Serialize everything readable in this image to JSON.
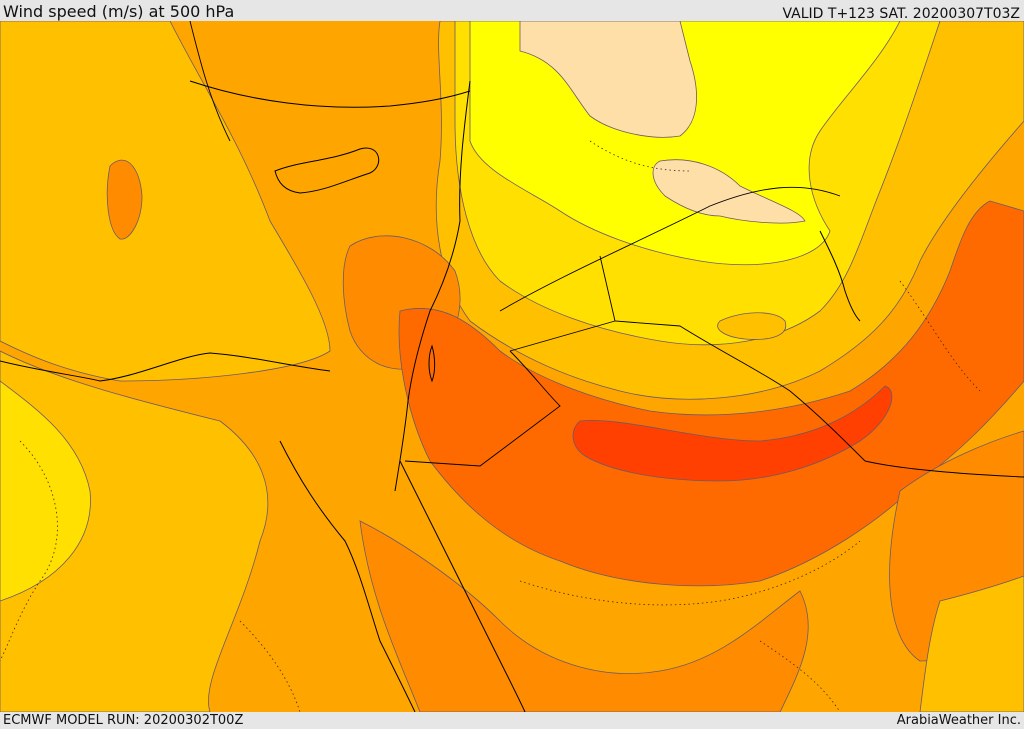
{
  "header": {
    "title": "Wind speed (m/s) at 500 hPa",
    "valid_time": "VALID T+123 SAT. 20200307T03Z"
  },
  "footer": {
    "model_run": "ECMWF MODEL RUN: 20200302T00Z",
    "credit": "ArabiaWeather Inc."
  },
  "map": {
    "variable": "Wind speed",
    "units": "m/s",
    "level": "500 hPa",
    "palette": {
      "very_light": "#ffdfa8",
      "yellow": "#ffff00",
      "light_yellow": "#ffe000",
      "amber": "#ffc000",
      "light_orange": "#ffa500",
      "orange": "#ff8c00",
      "dark_orange": "#ff6a00",
      "red_orange": "#ff4c00",
      "red": "#ff3800"
    },
    "coastline_color": "#000000",
    "border_style": "solid",
    "contour_color": "#5a4a6a"
  }
}
